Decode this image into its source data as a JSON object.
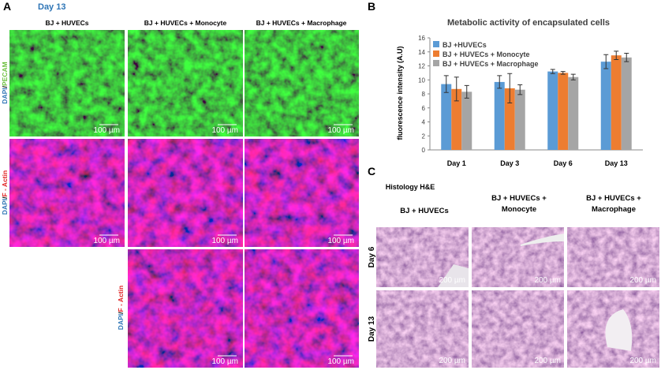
{
  "panel_a": {
    "label": "A",
    "day": "Day 13",
    "columns": [
      "BJ + HUVECs",
      "BJ + HUVECs + Monocyte",
      "BJ + HUVECs + Macrophage"
    ],
    "row_labels": [
      [
        "DAPI",
        "/",
        "PECAM"
      ],
      [
        "DAPI",
        "/",
        "F - Actin"
      ],
      [
        "DAPI",
        "/",
        "F - Actin"
      ]
    ],
    "scale_bar": "100 µm"
  },
  "chart_data": {
    "type": "bar",
    "label": "B",
    "title": "Metabolic activity of encapsulated cells",
    "ylabel": "fluorescence intensity (A.U)",
    "categories": [
      "Day 1",
      "Day 3",
      "Day 6",
      "Day 13"
    ],
    "series": [
      {
        "name": "BJ +HUVECs",
        "color": "#5b9bd5",
        "values": [
          9.4,
          9.7,
          11.2,
          12.6
        ],
        "errors": [
          1.2,
          0.9,
          0.3,
          1.0
        ]
      },
      {
        "name": "BJ + HUVECs + Monocyte",
        "color": "#ed7d31",
        "values": [
          8.7,
          8.8,
          11.0,
          13.5
        ],
        "errors": [
          1.7,
          2.1,
          0.2,
          0.6
        ]
      },
      {
        "name": "BJ + HUVECs + Macrophage",
        "color": "#a5a5a5",
        "values": [
          8.3,
          8.6,
          10.4,
          13.2
        ],
        "errors": [
          0.9,
          0.7,
          0.4,
          0.6
        ]
      }
    ],
    "ylim": [
      0,
      16
    ],
    "yticks": [
      0,
      2,
      4,
      6,
      8,
      10,
      12,
      14,
      16
    ],
    "legend": "upper left"
  },
  "panel_c": {
    "label": "C",
    "title": "Histology H&E",
    "columns": [
      [
        "BJ + HUVECs"
      ],
      [
        "BJ + HUVECs +",
        "Monocyte"
      ],
      [
        "BJ + HUVECs +",
        "Macrophage"
      ]
    ],
    "rows": [
      "Day 6",
      "Day 13"
    ],
    "scale_bar": "200 µm"
  }
}
